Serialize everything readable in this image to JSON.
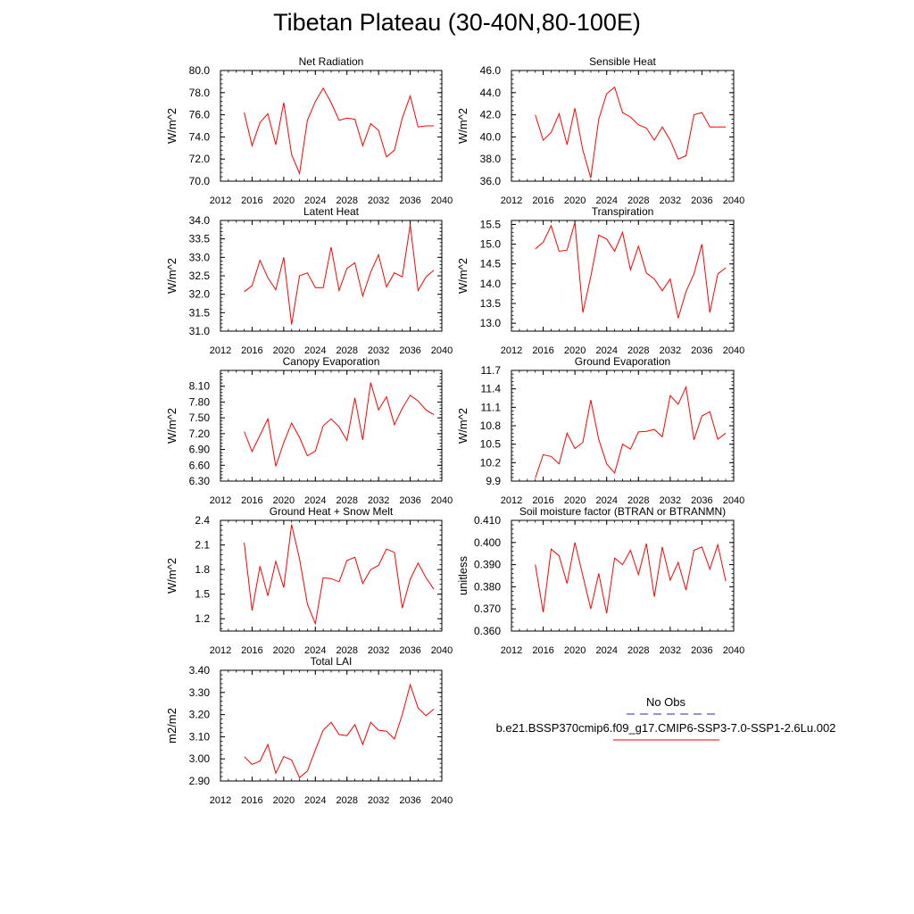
{
  "figure": {
    "title": "Tibetan Plateau (30-40N,80-100E)",
    "legend": {
      "obs_label": "No Obs",
      "obs_color": "#2a2aa8",
      "model_label": "b.e21.BSSP370cmip6.f09_g17.CMIP6-SSP3-7.0-SSP1-2.6Lu.002",
      "model_color": "#ff0000"
    }
  },
  "chart_data": [
    {
      "type": "line",
      "title": "Net Radiation",
      "ylabel": "W/m^2",
      "xlim": [
        2012,
        2040
      ],
      "ylim": [
        70.0,
        80.0
      ],
      "xticks": [
        "2012",
        "2016",
        "2020",
        "2024",
        "2028",
        "2032",
        "2036",
        "2040"
      ],
      "yticks": [
        "70.0",
        "72.0",
        "74.0",
        "76.0",
        "78.0",
        "80.0"
      ],
      "x": [
        2015,
        2016,
        2017,
        2018,
        2019,
        2020,
        2021,
        2022,
        2023,
        2024,
        2025,
        2026,
        2027,
        2028,
        2029,
        2030,
        2031,
        2032,
        2033,
        2034,
        2035,
        2036,
        2037,
        2038,
        2039
      ],
      "series": [
        {
          "values": [
            76.2,
            73.2,
            75.3,
            76.1,
            73.3,
            77.1,
            72.4,
            70.7,
            75.5,
            77.2,
            78.4,
            77.1,
            75.5,
            75.7,
            75.6,
            73.2,
            75.2,
            74.6,
            72.2,
            72.8,
            75.7,
            77.7,
            74.9,
            75.0,
            75.0
          ]
        }
      ]
    },
    {
      "type": "line",
      "title": "Sensible Heat",
      "ylabel": "W/m^2",
      "xlim": [
        2012,
        2040
      ],
      "ylim": [
        36.0,
        46.0
      ],
      "xticks": [
        "2012",
        "2016",
        "2020",
        "2024",
        "2028",
        "2032",
        "2036",
        "2040"
      ],
      "yticks": [
        "36.0",
        "38.0",
        "40.0",
        "42.0",
        "44.0",
        "46.0"
      ],
      "x": [
        2015,
        2016,
        2017,
        2018,
        2019,
        2020,
        2021,
        2022,
        2023,
        2024,
        2025,
        2026,
        2027,
        2028,
        2029,
        2030,
        2031,
        2032,
        2033,
        2034,
        2035,
        2036,
        2037,
        2038,
        2039
      ],
      "series": [
        {
          "values": [
            42.0,
            39.7,
            40.4,
            42.1,
            39.3,
            42.6,
            38.8,
            36.3,
            41.6,
            43.9,
            44.5,
            42.2,
            41.8,
            41.1,
            40.8,
            39.7,
            40.9,
            39.7,
            38.0,
            38.3,
            42.0,
            42.2,
            40.9,
            40.9,
            40.9
          ]
        }
      ]
    },
    {
      "type": "line",
      "title": "Latent Heat",
      "ylabel": "W/m^2",
      "xlim": [
        2012,
        2040
      ],
      "ylim": [
        31.0,
        34.0
      ],
      "xticks": [
        "2012",
        "2016",
        "2020",
        "2024",
        "2028",
        "2032",
        "2036",
        "2040"
      ],
      "yticks": [
        "31.0",
        "31.5",
        "32.0",
        "32.5",
        "33.0",
        "33.5",
        "34.0"
      ],
      "x": [
        2015,
        2016,
        2017,
        2018,
        2019,
        2020,
        2021,
        2022,
        2023,
        2024,
        2025,
        2026,
        2027,
        2028,
        2029,
        2030,
        2031,
        2032,
        2033,
        2034,
        2035,
        2036,
        2037,
        2038,
        2039
      ],
      "series": [
        {
          "values": [
            32.07,
            32.23,
            32.92,
            32.45,
            32.12,
            33.0,
            31.18,
            32.5,
            32.58,
            32.18,
            32.18,
            33.28,
            32.1,
            32.7,
            32.85,
            31.95,
            32.6,
            33.07,
            32.2,
            32.58,
            32.47,
            33.88,
            32.1,
            32.47,
            32.65
          ]
        }
      ]
    },
    {
      "type": "line",
      "title": "Transpiration",
      "ylabel": "W/m^2",
      "xlim": [
        2012,
        2040
      ],
      "ylim": [
        12.8,
        15.6
      ],
      "xticks": [
        "2012",
        "2016",
        "2020",
        "2024",
        "2028",
        "2032",
        "2036",
        "2040"
      ],
      "yticks": [
        "13.0",
        "13.5",
        "14.0",
        "14.5",
        "15.0",
        "15.5"
      ],
      "x": [
        2015,
        2016,
        2017,
        2018,
        2019,
        2020,
        2021,
        2022,
        2023,
        2024,
        2025,
        2026,
        2027,
        2028,
        2029,
        2030,
        2031,
        2032,
        2033,
        2034,
        2035,
        2036,
        2037,
        2038,
        2039
      ],
      "series": [
        {
          "values": [
            14.88,
            15.05,
            15.47,
            14.82,
            14.85,
            15.55,
            13.27,
            14.18,
            15.23,
            15.13,
            14.82,
            15.3,
            14.35,
            14.95,
            14.27,
            14.12,
            13.82,
            14.12,
            13.13,
            13.8,
            14.25,
            15.0,
            13.27,
            14.25,
            14.4
          ]
        }
      ]
    },
    {
      "type": "line",
      "title": "Canopy Evaporation",
      "ylabel": "W/m^2",
      "xlim": [
        2012,
        2040
      ],
      "ylim": [
        6.3,
        8.4
      ],
      "xticks": [
        "2012",
        "2016",
        "2020",
        "2024",
        "2028",
        "2032",
        "2036",
        "2040"
      ],
      "yticks": [
        "6.30",
        "6.60",
        "6.90",
        "7.20",
        "7.50",
        "7.80",
        "8.10"
      ],
      "x": [
        2015,
        2016,
        2017,
        2018,
        2019,
        2020,
        2021,
        2022,
        2023,
        2024,
        2025,
        2026,
        2027,
        2028,
        2029,
        2030,
        2031,
        2032,
        2033,
        2034,
        2035,
        2036,
        2037,
        2038,
        2039
      ],
      "series": [
        {
          "values": [
            7.24,
            6.86,
            7.17,
            7.48,
            6.58,
            7.03,
            7.4,
            7.13,
            6.78,
            6.87,
            7.35,
            7.48,
            7.33,
            7.07,
            7.88,
            7.08,
            8.17,
            7.65,
            7.9,
            7.37,
            7.68,
            7.93,
            7.82,
            7.65,
            7.56
          ]
        }
      ]
    },
    {
      "type": "line",
      "title": "Ground Evaporation",
      "ylabel": "W/m^2",
      "xlim": [
        2012,
        2040
      ],
      "ylim": [
        9.9,
        11.7
      ],
      "xticks": [
        "2012",
        "2016",
        "2020",
        "2024",
        "2028",
        "2032",
        "2036",
        "2040"
      ],
      "yticks": [
        "9.9",
        "10.2",
        "10.5",
        "10.8",
        "11.1",
        "11.4",
        "11.7"
      ],
      "x": [
        2015,
        2016,
        2017,
        2018,
        2019,
        2020,
        2021,
        2022,
        2023,
        2024,
        2025,
        2026,
        2027,
        2028,
        2029,
        2030,
        2031,
        2032,
        2033,
        2034,
        2035,
        2036,
        2037,
        2038,
        2039
      ],
      "series": [
        {
          "values": [
            9.95,
            10.33,
            10.3,
            10.18,
            10.68,
            10.43,
            10.53,
            11.22,
            10.58,
            10.18,
            10.03,
            10.5,
            10.42,
            10.7,
            10.71,
            10.74,
            10.62,
            11.29,
            11.15,
            11.43,
            10.57,
            10.96,
            11.03,
            10.58,
            10.68
          ]
        }
      ]
    },
    {
      "type": "line",
      "title": "Ground Heat + Snow Melt",
      "ylabel": "W/m^2",
      "xlim": [
        2012,
        2040
      ],
      "ylim": [
        1.05,
        2.4
      ],
      "xticks": [
        "2012",
        "2016",
        "2020",
        "2024",
        "2028",
        "2032",
        "2036",
        "2040"
      ],
      "yticks": [
        "1.2",
        "1.5",
        "1.8",
        "2.1",
        "2.4"
      ],
      "x": [
        2015,
        2016,
        2017,
        2018,
        2019,
        2020,
        2021,
        2022,
        2023,
        2024,
        2025,
        2026,
        2027,
        2028,
        2029,
        2030,
        2031,
        2032,
        2033,
        2034,
        2035,
        2036,
        2037,
        2038,
        2039
      ],
      "series": [
        {
          "values": [
            2.13,
            1.3,
            1.84,
            1.48,
            1.9,
            1.58,
            2.35,
            1.93,
            1.38,
            1.14,
            1.7,
            1.69,
            1.65,
            1.91,
            1.95,
            1.63,
            1.8,
            1.85,
            2.05,
            2.01,
            1.33,
            1.68,
            1.88,
            1.7,
            1.56
          ]
        }
      ]
    },
    {
      "type": "line",
      "title": "Soil moisture factor (BTRAN or BTRANMN)",
      "ylabel": "unitless",
      "xlim": [
        2012,
        2040
      ],
      "ylim": [
        0.36,
        0.41
      ],
      "xticks": [
        "2012",
        "2016",
        "2020",
        "2024",
        "2028",
        "2032",
        "2036",
        "2040"
      ],
      "yticks": [
        "0.360",
        "0.370",
        "0.380",
        "0.390",
        "0.400",
        "0.410"
      ],
      "x": [
        2015,
        2016,
        2017,
        2018,
        2019,
        2020,
        2021,
        2022,
        2023,
        2024,
        2025,
        2026,
        2027,
        2028,
        2029,
        2030,
        2031,
        2032,
        2033,
        2034,
        2035,
        2036,
        2037,
        2038,
        2039
      ],
      "series": [
        {
          "values": [
            0.39,
            0.3685,
            0.397,
            0.394,
            0.3815,
            0.4,
            0.385,
            0.37,
            0.386,
            0.368,
            0.393,
            0.39,
            0.3965,
            0.3855,
            0.3995,
            0.3755,
            0.398,
            0.383,
            0.391,
            0.3785,
            0.3965,
            0.398,
            0.388,
            0.399,
            0.3825
          ]
        }
      ]
    },
    {
      "type": "line",
      "title": "Total LAI",
      "ylabel": "m2/m2",
      "xlim": [
        2012,
        2040
      ],
      "ylim": [
        2.9,
        3.4
      ],
      "xticks": [
        "2012",
        "2016",
        "2020",
        "2024",
        "2028",
        "2032",
        "2036",
        "2040"
      ],
      "yticks": [
        "2.90",
        "3.00",
        "3.10",
        "3.20",
        "3.30",
        "3.40"
      ],
      "x": [
        2015,
        2016,
        2017,
        2018,
        2019,
        2020,
        2021,
        2022,
        2023,
        2024,
        2025,
        2026,
        2027,
        2028,
        2029,
        2030,
        2031,
        2032,
        2033,
        2034,
        2035,
        2036,
        2037,
        2038,
        2039
      ],
      "series": [
        {
          "values": [
            3.01,
            2.975,
            2.99,
            3.065,
            2.935,
            3.01,
            2.995,
            2.915,
            2.945,
            3.04,
            3.13,
            3.165,
            3.11,
            3.105,
            3.155,
            3.065,
            3.165,
            3.13,
            3.125,
            3.09,
            3.2,
            3.335,
            3.23,
            3.195,
            3.225
          ]
        }
      ]
    }
  ]
}
